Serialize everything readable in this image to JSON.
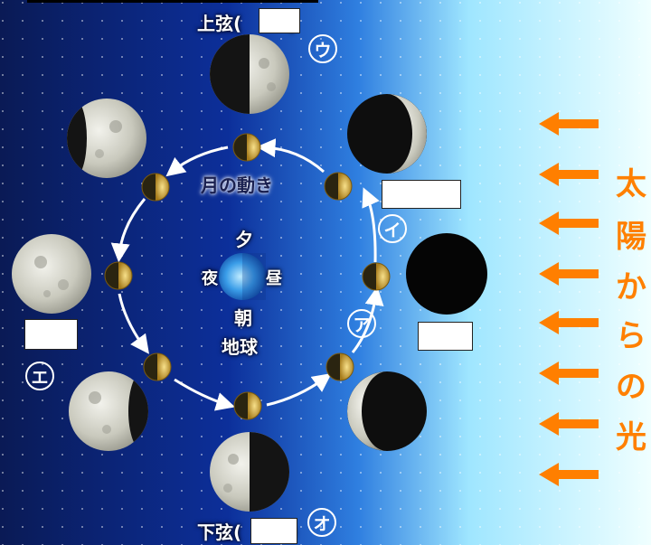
{
  "phases": {
    "first_quarter": "上弦",
    "last_quarter": "下弦",
    "paren_open": "(",
    "paren_close": ")"
  },
  "labels": {
    "u": "ウ",
    "i": "イ",
    "a": "ア",
    "e": "エ",
    "o": "オ"
  },
  "orbit_label": "月の動き",
  "earth": {
    "evening": "夕",
    "night": "夜",
    "day": "昼",
    "morning": "朝",
    "name": "地球"
  },
  "sunlight": [
    "太",
    "陽",
    "か",
    "ら",
    "の",
    "光"
  ],
  "colors": {
    "space_dark": "#071a5c",
    "space_light": "#e6fbff",
    "sun_arrow": "#ff7f00",
    "moon_gold": "#d9b04a"
  }
}
